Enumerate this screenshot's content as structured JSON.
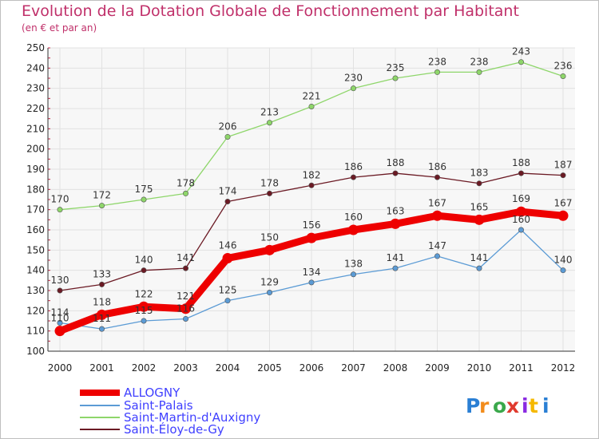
{
  "title": "Evolution de la Dotation Globale de Fonctionnement par Habitant",
  "subtitle": "(en € et par an)",
  "logo_text": "Proxiti",
  "chart_data": {
    "type": "line",
    "title": "Evolution de la Dotation Globale de Fonctionnement par Habitant",
    "subtitle": "(en € et par an)",
    "xlabel": "",
    "ylabel": "",
    "x": [
      "2000",
      "2001",
      "2002",
      "2003",
      "2004",
      "2005",
      "2006",
      "2007",
      "2008",
      "2009",
      "2010",
      "2011",
      "2012"
    ],
    "ylim": [
      100,
      250
    ],
    "yticks": [
      100,
      110,
      120,
      130,
      140,
      150,
      160,
      170,
      180,
      190,
      200,
      210,
      220,
      230,
      240,
      250
    ],
    "grid": true,
    "legend_position": "bottom-left",
    "series": [
      {
        "name": "Saint-Palais",
        "color": "#5b9bd5",
        "values": [
          114,
          111,
          115,
          116,
          125,
          129,
          134,
          138,
          141,
          147,
          141,
          160,
          140
        ]
      },
      {
        "name": "Saint-Martin-d'Auxigny",
        "color": "#8ed66a",
        "values": [
          170,
          172,
          175,
          178,
          206,
          213,
          221,
          230,
          235,
          238,
          238,
          243,
          236
        ]
      },
      {
        "name": "Saint-Éloy-de-Gy",
        "color": "#6b1a24",
        "values": [
          130,
          133,
          140,
          141,
          174,
          178,
          182,
          186,
          188,
          186,
          183,
          188,
          187
        ]
      },
      {
        "name": "ALLOGNY",
        "color": "#ee0000",
        "values": [
          110,
          118,
          122,
          121,
          146,
          150,
          156,
          160,
          163,
          167,
          165,
          169,
          167
        ]
      }
    ],
    "legend_order": [
      "ALLOGNY",
      "Saint-Palais",
      "Saint-Martin-d'Auxigny",
      "Saint-Éloy-de-Gy"
    ]
  }
}
